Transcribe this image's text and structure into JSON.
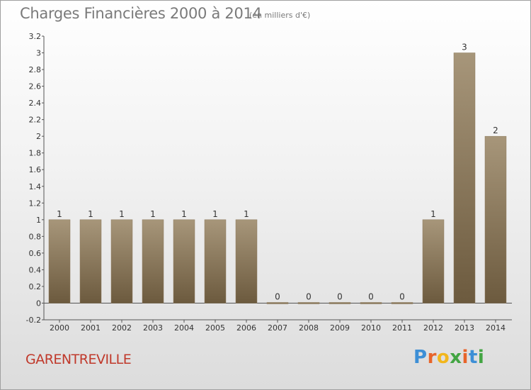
{
  "header": {
    "title": "Charges Financières 2000 à 2014",
    "subtitle": "(en milliers d'€)"
  },
  "footer": {
    "town": "GARENTREVILLE",
    "logo": {
      "letters": [
        "P",
        "r",
        "o",
        "x",
        "i",
        "t",
        "i"
      ],
      "colors": [
        "#3d8fd6",
        "#e8642a",
        "#f2b61c",
        "#43a543",
        "#e8642a",
        "#3d8fd6",
        "#43a543"
      ]
    }
  },
  "chart_data": {
    "type": "bar",
    "categories": [
      "2000",
      "2001",
      "2002",
      "2003",
      "2004",
      "2005",
      "2006",
      "2007",
      "2008",
      "2009",
      "2010",
      "2011",
      "2012",
      "2013",
      "2014"
    ],
    "values": [
      1,
      1,
      1,
      1,
      1,
      1,
      1,
      0,
      0,
      0,
      0,
      0,
      1,
      3,
      2
    ],
    "data_labels": [
      "1",
      "1",
      "1",
      "1",
      "1",
      "1",
      "1",
      "0",
      "0",
      "0",
      "0",
      "0",
      "1",
      "3",
      "2"
    ],
    "ylim": [
      -0.2,
      3.2
    ],
    "yticks": [
      "3.2",
      "3",
      "2.8",
      "2.6",
      "2.4",
      "2.2",
      "2",
      "1.8",
      "1.6",
      "1.4",
      "1.2",
      "1",
      "0.8",
      "0.6",
      "0.4",
      "0.2",
      "0",
      "-0.2"
    ],
    "bar_color": "#7e6a4c",
    "grid": false
  }
}
